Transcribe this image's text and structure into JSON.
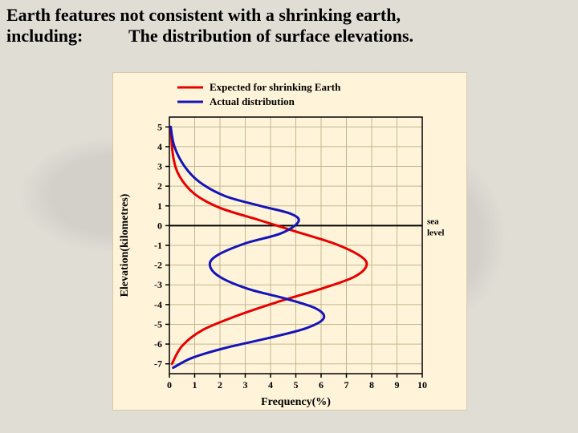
{
  "heading": {
    "line1": "Earth features not consistent with a shrinking earth,",
    "line2": "including:",
    "subtitle": "The distribution of surface elevations."
  },
  "chart": {
    "type": "line",
    "background_color": "#fff4d9",
    "plot_bg": "#fff4d9",
    "axis_color": "#000000",
    "grid_color": "#c0b890",
    "title_fontsize": 13,
    "label_fontsize": 14,
    "tick_fontsize": 12,
    "legend": {
      "items": [
        {
          "label": "Expected for shrinking Earth",
          "color": "#e60000"
        },
        {
          "label": "Actual distribution",
          "color": "#1414b8"
        }
      ],
      "line_width": 3
    },
    "x": {
      "label": "Frequency(%)",
      "lim": [
        0,
        10
      ],
      "ticks": [
        0,
        1,
        2,
        3,
        4,
        5,
        6,
        7,
        8,
        9,
        10
      ]
    },
    "y": {
      "label": "Elevation(kilometres)",
      "lim": [
        -7.5,
        5.5
      ],
      "ticks": [
        -7,
        -6,
        -5,
        -4,
        -3,
        -2,
        -1,
        0,
        1,
        2,
        3,
        4,
        5
      ],
      "zero_label": "sea\nlevel"
    },
    "series": {
      "expected": {
        "color": "#e60000",
        "width": 3,
        "points": [
          [
            0.05,
            5.0
          ],
          [
            0.15,
            3.5
          ],
          [
            0.4,
            2.5
          ],
          [
            1.0,
            1.6
          ],
          [
            2.0,
            0.9
          ],
          [
            3.5,
            0.3
          ],
          [
            5.0,
            -0.3
          ],
          [
            6.5,
            -0.9
          ],
          [
            7.5,
            -1.5
          ],
          [
            7.8,
            -2.0
          ],
          [
            7.3,
            -2.6
          ],
          [
            6.0,
            -3.2
          ],
          [
            4.2,
            -3.9
          ],
          [
            2.6,
            -4.6
          ],
          [
            1.3,
            -5.3
          ],
          [
            0.5,
            -6.1
          ],
          [
            0.1,
            -7.0
          ]
        ]
      },
      "actual": {
        "color": "#1414b8",
        "width": 3,
        "points": [
          [
            0.05,
            5.0
          ],
          [
            0.2,
            4.0
          ],
          [
            0.6,
            3.0
          ],
          [
            1.2,
            2.2
          ],
          [
            2.2,
            1.5
          ],
          [
            3.6,
            1.0
          ],
          [
            4.8,
            0.6
          ],
          [
            5.1,
            0.2
          ],
          [
            4.4,
            -0.4
          ],
          [
            3.0,
            -0.9
          ],
          [
            1.9,
            -1.5
          ],
          [
            1.6,
            -2.0
          ],
          [
            2.0,
            -2.6
          ],
          [
            3.1,
            -3.2
          ],
          [
            4.6,
            -3.7
          ],
          [
            5.8,
            -4.2
          ],
          [
            6.1,
            -4.7
          ],
          [
            5.4,
            -5.2
          ],
          [
            3.9,
            -5.7
          ],
          [
            2.2,
            -6.2
          ],
          [
            0.9,
            -6.7
          ],
          [
            0.15,
            -7.2
          ]
        ]
      }
    }
  }
}
